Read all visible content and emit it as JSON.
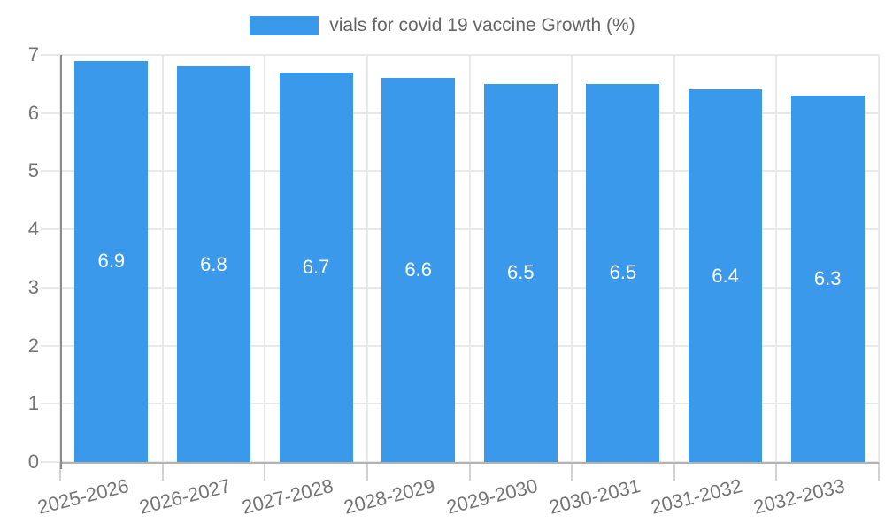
{
  "chart_data": {
    "type": "bar",
    "title": "",
    "xlabel": "",
    "ylabel": "",
    "legend": {
      "label": "vials for covid 19 vaccine Growth (%)",
      "position": "top"
    },
    "categories": [
      "2025-2026",
      "2026-2027",
      "2027-2028",
      "2028-2029",
      "2029-2030",
      "2030-2031",
      "2031-2032",
      "2032-2033"
    ],
    "series": [
      {
        "name": "vials for covid 19 vaccine Growth (%)",
        "values": [
          6.9,
          6.8,
          6.7,
          6.6,
          6.5,
          6.5,
          6.4,
          6.3
        ]
      }
    ],
    "value_labels": [
      "6.9",
      "6.8",
      "6.7",
      "6.6",
      "6.5",
      "6.5",
      "6.4",
      "6.3"
    ],
    "ylim": [
      0,
      7
    ],
    "yticks": [
      "0",
      "1",
      "2",
      "3",
      "4",
      "5",
      "6",
      "7"
    ],
    "grid": true,
    "legend_position": "top",
    "colors": {
      "bar": "#3b99ec",
      "grid": "#e9e9e9",
      "x_tick_mark": "#d2d2d2",
      "y_axis_line": "#8c8c8c",
      "x_axis_line": "#b3b3b3",
      "tick_text": "#757575",
      "legend_text": "#666666",
      "value_text": "#ffffff",
      "background": "#ffffff"
    }
  }
}
